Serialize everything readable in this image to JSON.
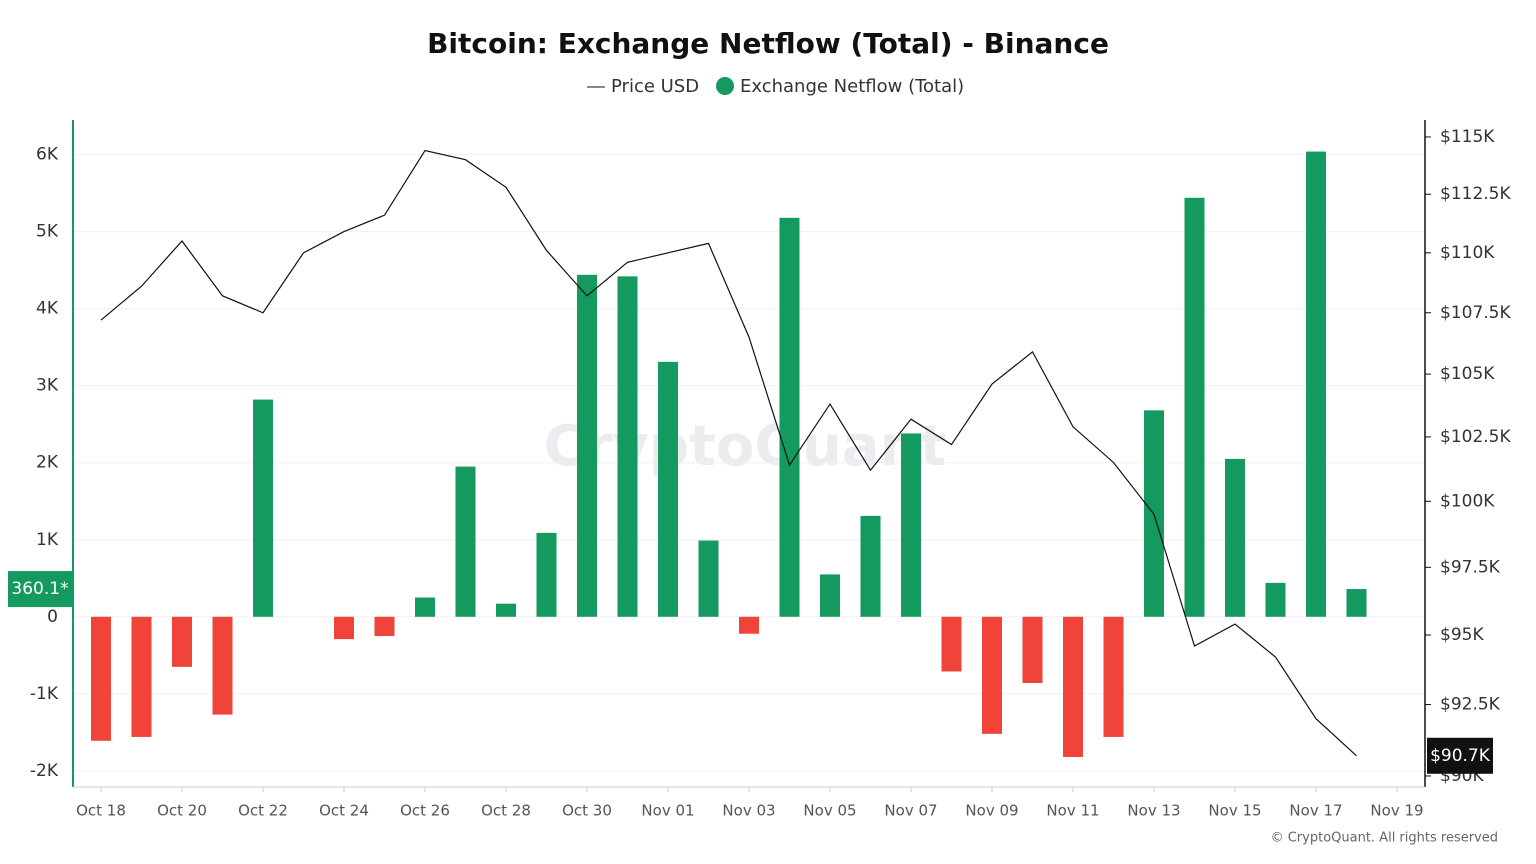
{
  "chart_data": {
    "type": "bar-line",
    "title": "Bitcoin: Exchange Netflow (Total) - Binance",
    "watermark": "CryptoQuant",
    "footer": "© CryptoQuant. All rights reserved",
    "categories": [
      "Oct 18",
      null,
      "Oct 20",
      null,
      "Oct 22",
      null,
      "Oct 24",
      null,
      "Oct 26",
      null,
      "Oct 28",
      null,
      "Oct 30",
      null,
      "Nov 01",
      null,
      "Nov 03",
      null,
      "Nov 05",
      null,
      "Nov 07",
      null,
      "Nov 09",
      null,
      "Nov 11",
      null,
      "Nov 13",
      null,
      "Nov 15",
      null,
      "Nov 17",
      null,
      "Nov 19"
    ],
    "series": [
      {
        "name": "Price USD",
        "type": "line",
        "axis": "y2",
        "color": "#111111",
        "values": [
          107200,
          108600,
          110500,
          108200,
          107500,
          110000,
          110900,
          111600,
          114400,
          114000,
          112800,
          110100,
          108200,
          109600,
          110000,
          110400,
          106500,
          101400,
          103800,
          101200,
          103200,
          102200,
          104600,
          105900,
          102900,
          101500,
          99500,
          94600,
          95400,
          94200,
          92000,
          90700,
          null
        ],
        "value_labels": [
          null,
          null,
          null,
          null,
          null,
          null,
          null,
          null,
          null,
          null,
          null,
          null,
          null,
          null,
          null,
          null,
          null,
          null,
          null,
          null,
          null,
          null,
          null,
          null,
          null,
          null,
          null,
          null,
          null,
          null,
          null,
          "$90.7K",
          null
        ]
      },
      {
        "name": "Exchange Netflow (Total)",
        "type": "bar",
        "color": "#14995f",
        "negative_color": "#f0433a",
        "values": [
          -1610,
          -1560,
          -650,
          -1270,
          2820,
          0,
          -290,
          -250,
          250,
          1950,
          170,
          1090,
          4440,
          4420,
          3310,
          990,
          -220,
          5180,
          550,
          1310,
          2380,
          -710,
          -1520,
          -860,
          -1820,
          -1560,
          2680,
          5440,
          2050,
          440,
          6040,
          360.1,
          null
        ],
        "value_labels": [
          null,
          null,
          null,
          null,
          null,
          null,
          null,
          null,
          null,
          null,
          null,
          null,
          null,
          null,
          null,
          null,
          null,
          null,
          null,
          null,
          null,
          null,
          null,
          null,
          null,
          null,
          null,
          null,
          null,
          null,
          null,
          "360.1*",
          null
        ]
      }
    ],
    "ylim": [
      -2210,
      6450
    ],
    "yticks": [
      {
        "value": -2000,
        "label": "-2K"
      },
      {
        "value": -1000,
        "label": "-1K"
      },
      0,
      {
        "value": 1000,
        "label": "1K"
      },
      {
        "value": 2000,
        "label": "2K"
      },
      {
        "value": 3000,
        "label": "3K"
      },
      {
        "value": 4000,
        "label": "4K"
      },
      {
        "value": 5000,
        "label": "5K"
      },
      {
        "value": 6000,
        "label": "6K"
      }
    ],
    "y2lim": [
      89620,
      115750
    ],
    "y2scale": "log",
    "y2ticks": [
      {
        "value": 90000,
        "label": "$90K"
      },
      {
        "value": 92500,
        "label": "$92.5K"
      },
      {
        "value": 95000,
        "label": "$95K"
      },
      {
        "value": 97500,
        "label": "$97.5K"
      },
      {
        "value": 100000,
        "label": "$100K"
      },
      {
        "value": 102500,
        "label": "$102.5K"
      },
      {
        "value": 105000,
        "label": "$105K"
      },
      {
        "value": 107500,
        "label": "$107.5K"
      },
      {
        "value": 110000,
        "label": "$110K"
      },
      {
        "value": 112500,
        "label": "$112.5K"
      },
      {
        "value": 115000,
        "label": "$115K"
      }
    ],
    "grid": true
  }
}
